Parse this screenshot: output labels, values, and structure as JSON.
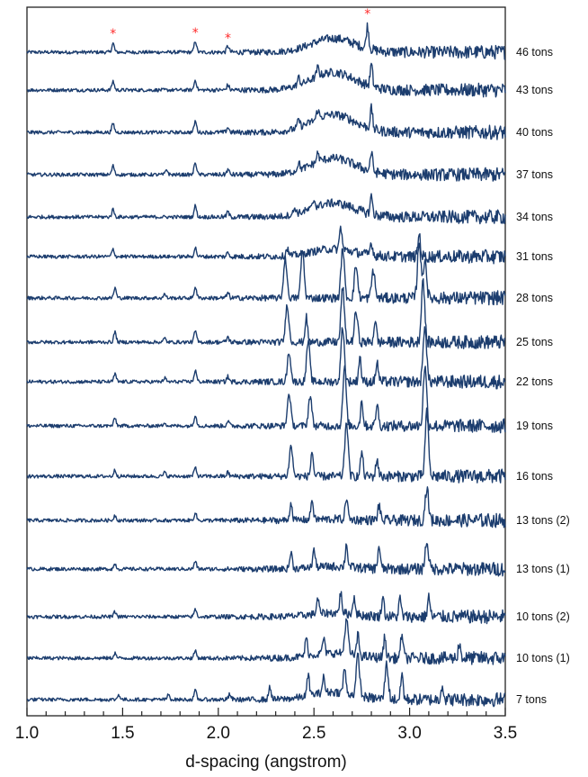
{
  "chart_data": {
    "type": "line",
    "title": "",
    "xlabel": "d-spacing (angstrom)",
    "ylabel": "",
    "xlim": [
      1.0,
      3.5
    ],
    "x_ticks": [
      "1.0",
      "1.5",
      "2.0",
      "2.5",
      "3.0",
      "3.5"
    ],
    "grid": false,
    "legend": "none",
    "line_color": "#1c3d6e",
    "marker_color": "#ff2a2a",
    "marker_symbol": "*",
    "marked_peaks_d": [
      1.45,
      1.88,
      2.05,
      2.78
    ],
    "series": [
      {
        "name": "46 tons",
        "peaks": [
          [
            1.45,
            0.35
          ],
          [
            1.88,
            0.45
          ],
          [
            2.05,
            0.25
          ],
          [
            2.78,
            0.9
          ]
        ],
        "hump": 0.55
      },
      {
        "name": "43 tons",
        "peaks": [
          [
            1.45,
            0.35
          ],
          [
            1.88,
            0.4
          ],
          [
            2.05,
            0.2
          ],
          [
            2.42,
            0.3
          ],
          [
            2.52,
            0.35
          ],
          [
            2.8,
            0.85
          ]
        ],
        "hump": 0.7
      },
      {
        "name": "40 tons",
        "peaks": [
          [
            1.45,
            0.35
          ],
          [
            1.88,
            0.45
          ],
          [
            2.05,
            0.2
          ],
          [
            2.42,
            0.3
          ],
          [
            2.52,
            0.35
          ],
          [
            2.8,
            0.8
          ]
        ],
        "hump": 0.7
      },
      {
        "name": "37 tons",
        "peaks": [
          [
            1.45,
            0.35
          ],
          [
            1.73,
            0.2
          ],
          [
            1.88,
            0.5
          ],
          [
            2.05,
            0.2
          ],
          [
            2.42,
            0.3
          ],
          [
            2.52,
            0.35
          ],
          [
            2.8,
            0.75
          ]
        ],
        "hump": 0.65
      },
      {
        "name": "34 tons",
        "peaks": [
          [
            1.45,
            0.3
          ],
          [
            1.88,
            0.45
          ],
          [
            2.05,
            0.2
          ],
          [
            2.4,
            0.25
          ],
          [
            2.5,
            0.3
          ],
          [
            2.8,
            0.7
          ]
        ],
        "hump": 0.55
      },
      {
        "name": "31 tons",
        "peaks": [
          [
            1.45,
            0.3
          ],
          [
            1.88,
            0.35
          ],
          [
            2.05,
            0.15
          ],
          [
            2.36,
            0.3
          ],
          [
            2.64,
            0.9
          ],
          [
            2.8,
            0.5
          ],
          [
            3.05,
            0.9
          ]
        ],
        "hump": 0.3
      },
      {
        "name": "28 tons",
        "peaks": [
          [
            1.46,
            0.4
          ],
          [
            1.72,
            0.15
          ],
          [
            1.88,
            0.45
          ],
          [
            2.05,
            0.2
          ],
          [
            2.35,
            1.6
          ],
          [
            2.44,
            1.9
          ],
          [
            2.65,
            2.0
          ],
          [
            2.72,
            1.3
          ],
          [
            2.81,
            1.1
          ],
          [
            3.05,
            2.3
          ],
          [
            3.08,
            1.6
          ]
        ],
        "hump": 0.0
      },
      {
        "name": "25 tons",
        "peaks": [
          [
            1.46,
            0.4
          ],
          [
            1.72,
            0.15
          ],
          [
            1.88,
            0.45
          ],
          [
            2.05,
            0.2
          ],
          [
            2.36,
            1.5
          ],
          [
            2.46,
            1.0
          ],
          [
            2.65,
            2.2
          ],
          [
            2.72,
            1.2
          ],
          [
            2.82,
            0.9
          ],
          [
            3.07,
            2.5
          ]
        ],
        "hump": 0.0
      },
      {
        "name": "22 tons",
        "peaks": [
          [
            1.46,
            0.3
          ],
          [
            1.72,
            0.15
          ],
          [
            1.88,
            0.45
          ],
          [
            2.05,
            0.2
          ],
          [
            2.37,
            1.2
          ],
          [
            2.47,
            1.6
          ],
          [
            2.65,
            2.2
          ],
          [
            2.74,
            1.0
          ],
          [
            2.83,
            0.8
          ],
          [
            3.08,
            2.3
          ]
        ],
        "hump": 0.0
      },
      {
        "name": "19 tons",
        "peaks": [
          [
            1.46,
            0.3
          ],
          [
            1.72,
            0.15
          ],
          [
            1.88,
            0.45
          ],
          [
            2.05,
            0.2
          ],
          [
            2.37,
            1.3
          ],
          [
            2.48,
            1.2
          ],
          [
            2.66,
            2.3
          ],
          [
            2.75,
            1.0
          ],
          [
            2.83,
            0.9
          ],
          [
            3.08,
            2.4
          ]
        ],
        "hump": 0.0
      },
      {
        "name": "16 tons",
        "peaks": [
          [
            1.46,
            0.25
          ],
          [
            1.72,
            0.15
          ],
          [
            1.88,
            0.35
          ],
          [
            2.05,
            0.15
          ],
          [
            2.38,
            1.2
          ],
          [
            2.49,
            1.0
          ],
          [
            2.67,
            2.2
          ],
          [
            2.75,
            1.0
          ],
          [
            2.83,
            0.7
          ],
          [
            3.09,
            2.5
          ]
        ],
        "hump": 0.0
      },
      {
        "name": "13 tons (2)",
        "peaks": [
          [
            1.46,
            0.2
          ],
          [
            1.88,
            0.3
          ],
          [
            2.38,
            0.7
          ],
          [
            2.49,
            0.8
          ],
          [
            2.67,
            0.9
          ],
          [
            2.84,
            0.6
          ],
          [
            3.09,
            1.3
          ]
        ],
        "hump": 0.05
      },
      {
        "name": "13 tons (1)",
        "peaks": [
          [
            1.46,
            0.2
          ],
          [
            1.88,
            0.3
          ],
          [
            2.38,
            0.65
          ],
          [
            2.5,
            0.7
          ],
          [
            2.67,
            0.9
          ],
          [
            2.84,
            0.9
          ],
          [
            3.09,
            1.1
          ]
        ],
        "hump": 0.1
      },
      {
        "name": "10 tons (2)",
        "peaks": [
          [
            1.46,
            0.2
          ],
          [
            1.88,
            0.3
          ],
          [
            2.52,
            0.6
          ],
          [
            2.64,
            0.8
          ],
          [
            2.71,
            0.7
          ],
          [
            2.86,
            0.8
          ],
          [
            2.95,
            0.7
          ],
          [
            3.1,
            0.8
          ]
        ],
        "hump": 0.15
      },
      {
        "name": "10 tons (1)",
        "peaks": [
          [
            1.46,
            0.2
          ],
          [
            1.88,
            0.3
          ],
          [
            2.46,
            0.7
          ],
          [
            2.55,
            0.6
          ],
          [
            2.67,
            1.4
          ],
          [
            2.73,
            0.8
          ],
          [
            2.87,
            0.8
          ],
          [
            2.96,
            1.0
          ],
          [
            3.26,
            0.6
          ]
        ],
        "hump": 0.2
      },
      {
        "name": "7 tons",
        "peaks": [
          [
            1.48,
            0.2
          ],
          [
            1.74,
            0.2
          ],
          [
            1.88,
            0.35
          ],
          [
            2.06,
            0.2
          ],
          [
            2.27,
            0.5
          ],
          [
            2.47,
            0.8
          ],
          [
            2.55,
            0.6
          ],
          [
            2.66,
            1.0
          ],
          [
            2.73,
            1.6
          ],
          [
            2.88,
            1.4
          ],
          [
            2.96,
            1.0
          ],
          [
            3.17,
            0.6
          ]
        ],
        "hump": 0.3
      }
    ]
  }
}
